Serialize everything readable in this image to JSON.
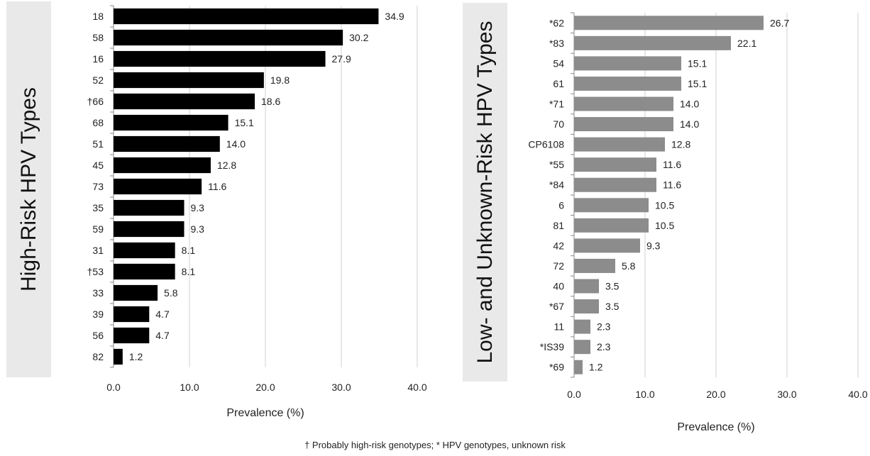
{
  "chart_data": [
    {
      "type": "bar",
      "orientation": "horizontal",
      "ylabel": "High-Risk HPV Types",
      "xlabel": "Prevalence (%)",
      "xlim": [
        0,
        40
      ],
      "xticks": [
        "0.0",
        "10.0",
        "20.0",
        "30.0",
        "40.0"
      ],
      "grid": "vertical",
      "bar_color": "#000000",
      "categories": [
        "18",
        "58",
        "16",
        "52",
        "†66",
        "68",
        "51",
        "45",
        "73",
        "35",
        "59",
        "31",
        "†53",
        "33",
        "39",
        "56",
        "82"
      ],
      "values": [
        34.9,
        30.2,
        27.9,
        19.8,
        18.6,
        15.1,
        14.0,
        12.8,
        11.6,
        9.3,
        9.3,
        8.1,
        8.1,
        5.8,
        4.7,
        4.7,
        1.2
      ],
      "value_labels": [
        "34.9",
        "30.2",
        "27.9",
        "19.8",
        "18.6",
        "15.1",
        "14.0",
        "12.8",
        "11.6",
        "9.3",
        "9.3",
        "8.1",
        "8.1",
        "5.8",
        "4.7",
        "4.7",
        "1.2"
      ]
    },
    {
      "type": "bar",
      "orientation": "horizontal",
      "ylabel": "Low- and Unknown-Risk HPV Types",
      "xlabel": "Prevalence (%)",
      "xlim": [
        0,
        40
      ],
      "xticks": [
        "0.0",
        "10.0",
        "20.0",
        "30.0",
        "40.0"
      ],
      "grid": "vertical",
      "bar_color": "#8c8c8c",
      "categories": [
        "*62",
        "*83",
        "54",
        "61",
        "*71",
        "70",
        "CP6108",
        "*55",
        "*84",
        "6",
        "81",
        "42",
        "72",
        "40",
        "*67",
        "11",
        "*IS39",
        "*69"
      ],
      "values": [
        26.7,
        22.1,
        15.1,
        15.1,
        14.0,
        14.0,
        12.8,
        11.6,
        11.6,
        10.5,
        10.5,
        9.3,
        5.8,
        3.5,
        3.5,
        2.3,
        2.3,
        1.2
      ],
      "value_labels": [
        "26.7",
        "22.1",
        "15.1",
        "15.1",
        "14.0",
        "14.0",
        "12.8",
        "11.6",
        "11.6",
        "10.5",
        "10.5",
        "9.3",
        "5.8",
        "3.5",
        "3.5",
        "2.3",
        "2.3",
        "1.2"
      ]
    }
  ],
  "footnote": "† Probably high-risk genotypes; * HPV genotypes, unknown risk"
}
